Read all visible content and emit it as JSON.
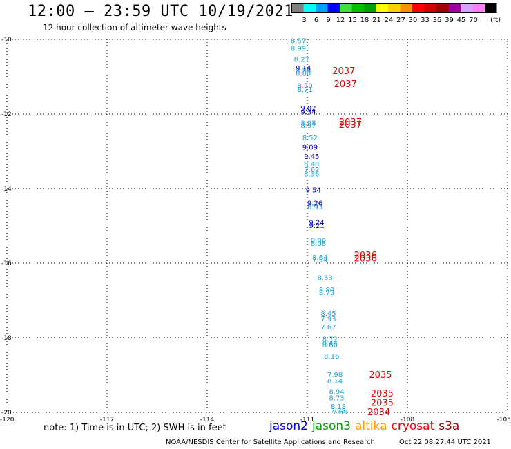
{
  "header": {
    "title": "12:00 – 23:59 UTC 10/19/2021",
    "subtitle": "12 hour collection of altimeter wave heights"
  },
  "colorbar": {
    "labels": [
      "3",
      "6",
      "9",
      "12",
      "15",
      "18",
      "21",
      "24",
      "27",
      "30",
      "33",
      "36",
      "39",
      "45",
      "70"
    ],
    "unit": "(ft)",
    "colors": [
      "#808080",
      "#00ffff",
      "#00a0ff",
      "#0000ff",
      "#40e040",
      "#00c000",
      "#00a000",
      "#ffff00",
      "#ffd000",
      "#ff9000",
      "#ff0000",
      "#d00000",
      "#a00000",
      "#a000a0",
      "#d8a0ff",
      "#ff80ff",
      "#000000"
    ]
  },
  "footer": {
    "note": "note:  1) Time is in UTC;  2) SWH is in feet",
    "legend": [
      {
        "name": "jason2",
        "color": "#0000dd"
      },
      {
        "name": "jason3",
        "color": "#00a000"
      },
      {
        "name": "altika",
        "color": "#ff9900"
      },
      {
        "name": "cryosat",
        "color": "#ee0000"
      },
      {
        "name": "s3a",
        "color": "#990000"
      }
    ],
    "credit": "NOAA/NESDIS Center for Satellite Applications and Research",
    "timestamp": "Oct 22 08:27:44 UTC 2021"
  },
  "chart_data": {
    "type": "scatter",
    "xlim": [
      -120,
      -105
    ],
    "ylim": [
      -20,
      -10
    ],
    "x_ticks": [
      -120,
      -117,
      -114,
      -111,
      -108,
      -105
    ],
    "y_ticks": [
      -10,
      -12,
      -14,
      -16,
      -18,
      -20
    ],
    "grid": true,
    "series": [
      {
        "name": "swh-light",
        "color": "#1aa3d6",
        "points": [
          {
            "x": -111.5,
            "y": -10.05,
            "label": "8.57"
          },
          {
            "x": -111.5,
            "y": -10.25,
            "label": "8.99"
          },
          {
            "x": -111.4,
            "y": -10.55,
            "label": "8.27"
          },
          {
            "x": -111.35,
            "y": -10.85,
            "label": "8.86"
          },
          {
            "x": -111.35,
            "y": -10.92,
            "label": "8.88"
          },
          {
            "x": -111.3,
            "y": -11.25,
            "label": "8.70"
          },
          {
            "x": -111.3,
            "y": -11.35,
            "label": "8.71"
          },
          {
            "x": -111.2,
            "y": -12.25,
            "label": "8.98"
          },
          {
            "x": -111.2,
            "y": -12.32,
            "label": "8.97"
          },
          {
            "x": -111.15,
            "y": -12.65,
            "label": "8.52"
          },
          {
            "x": -111.1,
            "y": -13.35,
            "label": "8.48"
          },
          {
            "x": -111.1,
            "y": -13.5,
            "label": "7.62"
          },
          {
            "x": -111.1,
            "y": -13.62,
            "label": "8.36"
          },
          {
            "x": -111.0,
            "y": -14.5,
            "label": "8.93"
          },
          {
            "x": -110.9,
            "y": -15.4,
            "label": "8.06"
          },
          {
            "x": -110.9,
            "y": -15.48,
            "label": "8.08"
          },
          {
            "x": -110.85,
            "y": -15.85,
            "label": "8.64"
          },
          {
            "x": -110.85,
            "y": -15.92,
            "label": "7.94"
          },
          {
            "x": -110.7,
            "y": -16.4,
            "label": "8.53"
          },
          {
            "x": -110.65,
            "y": -16.72,
            "label": "8.80"
          },
          {
            "x": -110.65,
            "y": -16.8,
            "label": "8.75"
          },
          {
            "x": -110.6,
            "y": -17.35,
            "label": "8.45"
          },
          {
            "x": -110.6,
            "y": -17.5,
            "label": "7.93"
          },
          {
            "x": -110.6,
            "y": -17.72,
            "label": "7.67"
          },
          {
            "x": -110.55,
            "y": -18.05,
            "label": "8.72"
          },
          {
            "x": -110.55,
            "y": -18.15,
            "label": "8.44"
          },
          {
            "x": -110.55,
            "y": -18.2,
            "label": "8.60"
          },
          {
            "x": -110.5,
            "y": -18.5,
            "label": "8.16"
          },
          {
            "x": -110.4,
            "y": -19.0,
            "label": "7.98"
          },
          {
            "x": -110.4,
            "y": -19.17,
            "label": "8.14"
          },
          {
            "x": -110.35,
            "y": -19.45,
            "label": "8.94"
          },
          {
            "x": -110.35,
            "y": -19.62,
            "label": "8.73"
          },
          {
            "x": -110.3,
            "y": -19.85,
            "label": "8.18"
          },
          {
            "x": -110.3,
            "y": -19.95,
            "label": "7.28"
          },
          {
            "x": -110.25,
            "y": -20.0,
            "label": "7.69"
          }
        ]
      },
      {
        "name": "swh-dark",
        "color": "#0000cc",
        "points": [
          {
            "x": -111.35,
            "y": -10.78,
            "label": "9.14"
          },
          {
            "x": -111.2,
            "y": -11.85,
            "label": "9.02"
          },
          {
            "x": -111.2,
            "y": -11.95,
            "label": "9.34"
          },
          {
            "x": -111.15,
            "y": -12.9,
            "label": "9.09"
          },
          {
            "x": -111.1,
            "y": -13.15,
            "label": "9.45"
          },
          {
            "x": -111.05,
            "y": -14.05,
            "label": "9.54"
          },
          {
            "x": -111.0,
            "y": -14.4,
            "label": "9.26"
          },
          {
            "x": -110.95,
            "y": -14.92,
            "label": "9.24"
          },
          {
            "x": -110.95,
            "y": -15.0,
            "label": "9.21"
          }
        ]
      },
      {
        "name": "time-stamps",
        "color": "#ee0000",
        "points": [
          {
            "x": -110.25,
            "y": -10.85,
            "label": "2037"
          },
          {
            "x": -110.2,
            "y": -11.2,
            "label": "2037"
          },
          {
            "x": -110.05,
            "y": -12.22,
            "label": "2037"
          },
          {
            "x": -110.05,
            "y": -12.3,
            "label": "2037"
          },
          {
            "x": -109.6,
            "y": -15.8,
            "label": "2036"
          },
          {
            "x": -109.6,
            "y": -15.88,
            "label": "2036"
          },
          {
            "x": -109.15,
            "y": -19.0,
            "label": "2035"
          },
          {
            "x": -109.1,
            "y": -19.5,
            "label": "2035"
          },
          {
            "x": -109.1,
            "y": -19.75,
            "label": "2035"
          },
          {
            "x": -109.2,
            "y": -20.0,
            "label": "2034"
          }
        ]
      }
    ]
  }
}
